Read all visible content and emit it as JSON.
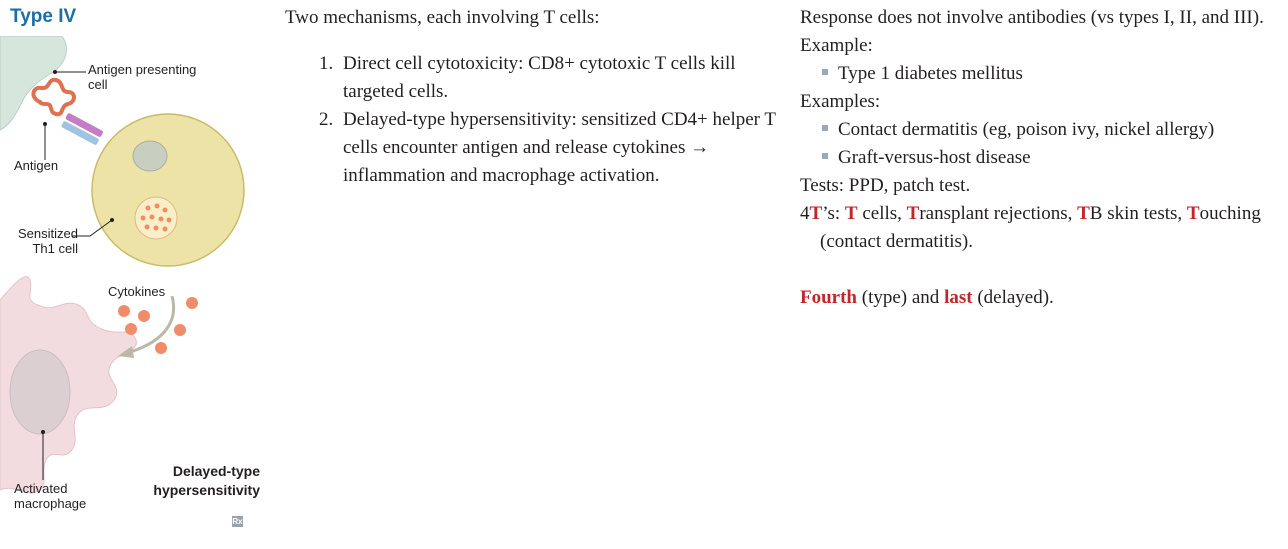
{
  "section": {
    "title": "Type IV"
  },
  "figure": {
    "labels": {
      "apc": "Antigen presenting cell",
      "antigen": "Antigen",
      "th1": "Sensitized Th1 cell",
      "cytokines": "Cytokines",
      "macrophage": "Activated macrophage",
      "title": "Delayed-type hypersensitivity",
      "rx": "Rx"
    },
    "colors": {
      "apc": "#d7e6dc",
      "th1_cell": "#ede3a6",
      "cytokine": "#f08c6a",
      "macrophage": "#f2dcdf",
      "receptor": "#c47cc3",
      "heading": "#1b6fa8"
    }
  },
  "mechanism": {
    "intro": "Two mechanisms, each involving T cells:",
    "items": [
      "Direct cell cytotoxicity: CD8+ cytotoxic T cells kill targeted cells.",
      "Delayed-type hypersensitivity: sensitized CD4+ helper T cells encounter antigen and release cytokines → inflammation and macrophage activation."
    ]
  },
  "notes": {
    "line1": "Response does not involve antibodies (vs types I, II, and III).",
    "example_label": "Example:",
    "example_item": "Type 1 diabetes mellitus",
    "examples_label": "Examples:",
    "examples_items": [
      "Contact dermatitis (eg, poison ivy, nickel allergy)",
      "Graft-versus-host disease"
    ],
    "tests": "Tests: PPD, patch test.",
    "mnemonic": {
      "prefix": "4",
      "t1": "T",
      "s1": "’s: ",
      "t2": "T",
      "s2": " cells, ",
      "t3": "T",
      "s3": "ransplant rejections, ",
      "t4": "T",
      "s4": "B skin tests, ",
      "t5": "T",
      "s5": "ouching (contact dermatitis)."
    },
    "fourth": "Fourth",
    "fourth_rest": " (type) and ",
    "last": "last",
    "last_rest": " (delayed)."
  }
}
